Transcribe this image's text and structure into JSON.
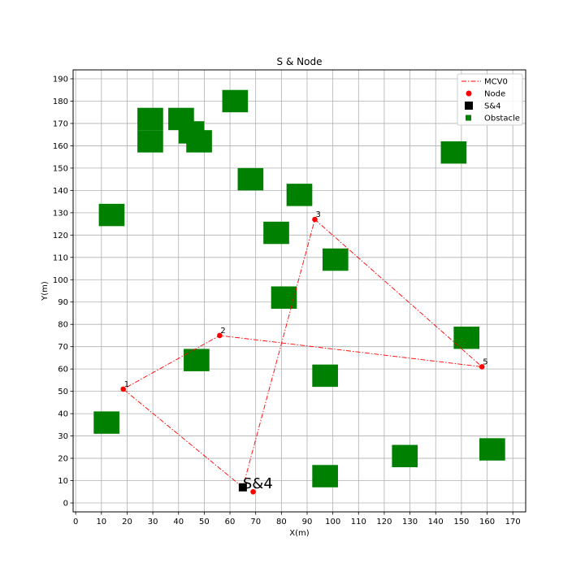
{
  "chart_data": {
    "type": "scatter",
    "title": "S & Node",
    "xlabel": "X(m)",
    "ylabel": "Y(m)",
    "xlim": [
      -1,
      175
    ],
    "ylim": [
      -4,
      194
    ],
    "xticks": [
      0,
      10,
      20,
      30,
      40,
      50,
      60,
      70,
      80,
      90,
      100,
      110,
      120,
      130,
      140,
      150,
      160,
      170
    ],
    "yticks": [
      0,
      10,
      20,
      30,
      40,
      50,
      60,
      70,
      80,
      90,
      100,
      110,
      120,
      130,
      140,
      150,
      160,
      170,
      180,
      190
    ],
    "grid": true,
    "legend_position": "top-right",
    "series": [
      {
        "name": "MCV0",
        "kind": "line",
        "style": "dash-dot",
        "color": "#ff0000",
        "points": [
          {
            "x": 65,
            "y": 7
          },
          {
            "x": 18.5,
            "y": 51
          },
          {
            "x": 56,
            "y": 75
          },
          {
            "x": 158,
            "y": 61
          },
          {
            "x": 93,
            "y": 127
          },
          {
            "x": 65,
            "y": 7
          }
        ]
      },
      {
        "name": "Node",
        "kind": "scatter",
        "color": "#ff0000",
        "points": [
          {
            "x": 18.5,
            "y": 51,
            "label": "1"
          },
          {
            "x": 56,
            "y": 75,
            "label": "2"
          },
          {
            "x": 93,
            "y": 127,
            "label": "3"
          },
          {
            "x": 69,
            "y": 5,
            "label": ""
          },
          {
            "x": 158,
            "y": 61,
            "label": "5"
          }
        ]
      },
      {
        "name": "S&4",
        "kind": "square",
        "color": "#000000",
        "points": [
          {
            "x": 65,
            "y": 7,
            "label": "S&4"
          }
        ]
      },
      {
        "name": "Obstacle",
        "kind": "rect",
        "color": "#008000",
        "rects": [
          {
            "x0": 24,
            "x1": 34,
            "y0": 157,
            "y1": 167
          },
          {
            "x0": 24,
            "x1": 34,
            "y0": 167,
            "y1": 177
          },
          {
            "x0": 36,
            "x1": 46,
            "y0": 167,
            "y1": 177
          },
          {
            "x0": 40,
            "x1": 50,
            "y0": 161,
            "y1": 171
          },
          {
            "x0": 43,
            "x1": 53,
            "y0": 157,
            "y1": 167
          },
          {
            "x0": 57,
            "x1": 67,
            "y0": 175,
            "y1": 185
          },
          {
            "x0": 63,
            "x1": 73,
            "y0": 140,
            "y1": 150
          },
          {
            "x0": 82,
            "x1": 92,
            "y0": 133,
            "y1": 143
          },
          {
            "x0": 9,
            "x1": 19,
            "y0": 124,
            "y1": 134
          },
          {
            "x0": 73,
            "x1": 83,
            "y0": 116,
            "y1": 126
          },
          {
            "x0": 96,
            "x1": 106,
            "y0": 104,
            "y1": 114
          },
          {
            "x0": 76,
            "x1": 86,
            "y0": 87,
            "y1": 97
          },
          {
            "x0": 42,
            "x1": 52,
            "y0": 59,
            "y1": 69
          },
          {
            "x0": 92,
            "x1": 102,
            "y0": 52,
            "y1": 62
          },
          {
            "x0": 7,
            "x1": 17,
            "y0": 31,
            "y1": 41
          },
          {
            "x0": 142,
            "x1": 152,
            "y0": 152,
            "y1": 162
          },
          {
            "x0": 147,
            "x1": 157,
            "y0": 69,
            "y1": 79
          },
          {
            "x0": 123,
            "x1": 133,
            "y0": 16,
            "y1": 26
          },
          {
            "x0": 157,
            "x1": 167,
            "y0": 19,
            "y1": 29
          },
          {
            "x0": 92,
            "x1": 102,
            "y0": 7,
            "y1": 17
          }
        ]
      }
    ]
  }
}
